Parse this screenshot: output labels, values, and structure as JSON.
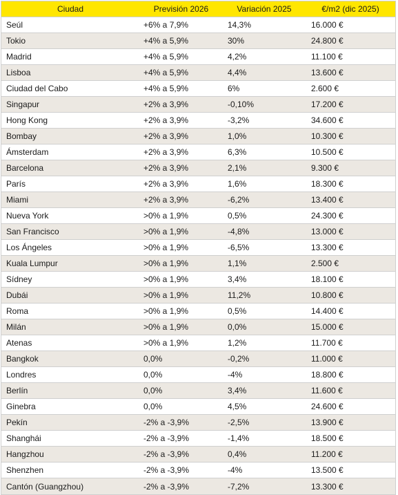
{
  "table": {
    "colors": {
      "header_bg": "#ffe600",
      "stripe_bg": "#ece8e2"
    },
    "headers": [
      "Ciudad",
      "Previsión 2026",
      "Variación 2025",
      "€/m2 (dic 2025)"
    ],
    "rows": [
      [
        "Seúl",
        "+6% a 7,9%",
        "14,3%",
        "16.000 €"
      ],
      [
        "Tokio",
        "+4% a 5,9%",
        "30%",
        "24.800 €"
      ],
      [
        "Madrid",
        "+4% a 5,9%",
        "4,2%",
        "11.100 €"
      ],
      [
        "Lisboa",
        "+4% a 5,9%",
        "4,4%",
        "13.600 €"
      ],
      [
        "Ciudad del Cabo",
        "+4% a 5,9%",
        "6%",
        "2.600 €"
      ],
      [
        "Singapur",
        "+2% a 3,9%",
        "-0,10%",
        "17.200 €"
      ],
      [
        "Hong Kong",
        "+2% a 3,9%",
        "-3,2%",
        "34.600 €"
      ],
      [
        "Bombay",
        "+2% a 3,9%",
        "1,0%",
        "10.300 €"
      ],
      [
        "Ámsterdam",
        "+2% a 3,9%",
        "6,3%",
        "10.500 €"
      ],
      [
        "Barcelona",
        "+2% a 3,9%",
        "2,1%",
        "9.300 €"
      ],
      [
        "París",
        "+2% a 3,9%",
        "1,6%",
        "18.300 €"
      ],
      [
        "Miami",
        "+2% a 3,9%",
        "-6,2%",
        "13.400 €"
      ],
      [
        "Nueva York",
        ">0% a 1,9%",
        "0,5%",
        "24.300 €"
      ],
      [
        "San Francisco",
        ">0% a 1,9%",
        "-4,8%",
        "13.000 €"
      ],
      [
        "Los Ángeles",
        ">0% a 1,9%",
        "-6,5%",
        "13.300 €"
      ],
      [
        "Kuala Lumpur",
        ">0% a 1,9%",
        "1,1%",
        "2.500 €"
      ],
      [
        "Sídney",
        ">0% a 1,9%",
        "3,4%",
        "18.100 €"
      ],
      [
        "Dubái",
        ">0% a 1,9%",
        "11,2%",
        "10.800 €"
      ],
      [
        "Roma",
        ">0% a 1,9%",
        "0,5%",
        "14.400 €"
      ],
      [
        "Milán",
        ">0% a 1,9%",
        "0,0%",
        "15.000 €"
      ],
      [
        "Atenas",
        ">0% a 1,9%",
        "1,2%",
        "11.700 €"
      ],
      [
        "Bangkok",
        "0,0%",
        "-0,2%",
        "11.000 €"
      ],
      [
        "Londres",
        "0,0%",
        "-4%",
        "18.800 €"
      ],
      [
        "Berlín",
        "0,0%",
        "3,4%",
        "11.600 €"
      ],
      [
        "Ginebra",
        "0,0%",
        "4,5%",
        "24.600 €"
      ],
      [
        "Pekín",
        "-2% a -3,9%",
        "-2,5%",
        "13.900 €"
      ],
      [
        "Shanghái",
        "-2% a -3,9%",
        "-1,4%",
        "18.500 €"
      ],
      [
        "Hangzhou",
        "-2% a -3,9%",
        "0,4%",
        "11.200 €"
      ],
      [
        "Shenzhen",
        "-2% a -3,9%",
        "-4%",
        "13.500 €"
      ],
      [
        "Cantón (Guangzhou)",
        "-2% a -3,9%",
        "-7,2%",
        "13.300 €"
      ]
    ]
  }
}
